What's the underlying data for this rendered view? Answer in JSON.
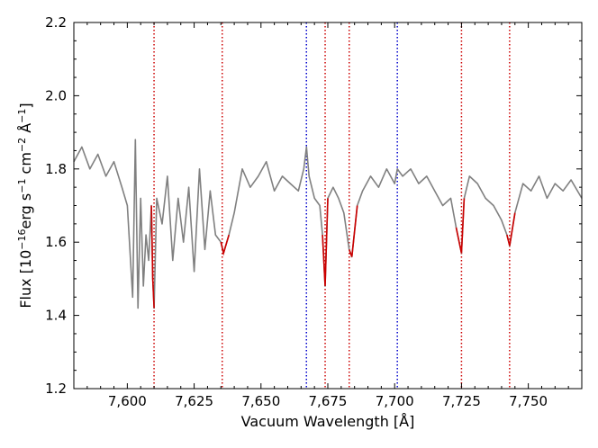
{
  "chart_data": {
    "type": "line",
    "xlabel": "Vacuum Wavelength [Å]",
    "ylabel_parts": [
      "Flux [10",
      "−16",
      "erg s",
      "−1",
      " cm",
      "−2",
      " Å",
      "−1",
      "]"
    ],
    "xlim": [
      7580,
      7770
    ],
    "ylim": [
      1.2,
      2.2
    ],
    "xticks": [
      7600,
      7625,
      7650,
      7675,
      7700,
      7725,
      7750
    ],
    "xtick_labels": [
      "7,600",
      "7,625",
      "7,650",
      "7,675",
      "7,700",
      "7,725",
      "7,750"
    ],
    "yticks": [
      1.2,
      1.4,
      1.6,
      1.8,
      2.0,
      2.2
    ],
    "ytick_labels": [
      "1.2",
      "1.4",
      "1.6",
      "1.8",
      "2.0",
      "2.2"
    ],
    "grid": false,
    "series": [
      {
        "color": "#808080",
        "x": [
          7580,
          7583,
          7586,
          7589,
          7592,
          7595,
          7598,
          7600,
          7602,
          7603,
          7604,
          7605,
          7606,
          7607,
          7608,
          7609,
          7609.5,
          7610,
          7611,
          7613,
          7615,
          7617,
          7619,
          7621,
          7623,
          7625,
          7627,
          7629,
          7631,
          7633,
          7635,
          7636,
          7638,
          7640,
          7643,
          7646,
          7649,
          7652,
          7655,
          7658,
          7661,
          7664,
          7666,
          7667,
          7668,
          7670,
          7672,
          7673,
          7674,
          7675,
          7677,
          7679,
          7681,
          7683,
          7684,
          7686,
          7688,
          7691,
          7694,
          7697,
          7700,
          7701,
          7703,
          7706,
          7709,
          7712,
          7715,
          7718,
          7721,
          7723,
          7725,
          7726,
          7728,
          7731,
          7734,
          7737,
          7740,
          7742,
          7743,
          7745,
          7748,
          7751,
          7754,
          7757,
          7760,
          7763,
          7766,
          7770
        ],
        "y": [
          1.82,
          1.86,
          1.8,
          1.84,
          1.78,
          1.82,
          1.75,
          1.7,
          1.45,
          1.88,
          1.42,
          1.72,
          1.48,
          1.62,
          1.55,
          1.7,
          1.5,
          1.42,
          1.72,
          1.65,
          1.78,
          1.55,
          1.72,
          1.6,
          1.75,
          1.52,
          1.8,
          1.58,
          1.74,
          1.62,
          1.6,
          1.57,
          1.62,
          1.68,
          1.8,
          1.75,
          1.78,
          1.82,
          1.74,
          1.78,
          1.76,
          1.74,
          1.8,
          1.86,
          1.78,
          1.72,
          1.7,
          1.62,
          1.48,
          1.72,
          1.75,
          1.72,
          1.68,
          1.58,
          1.56,
          1.7,
          1.74,
          1.78,
          1.75,
          1.8,
          1.76,
          1.8,
          1.78,
          1.8,
          1.76,
          1.78,
          1.74,
          1.7,
          1.72,
          1.64,
          1.57,
          1.72,
          1.78,
          1.76,
          1.72,
          1.7,
          1.66,
          1.62,
          1.59,
          1.68,
          1.76,
          1.74,
          1.78,
          1.72,
          1.76,
          1.74,
          1.77,
          1.72
        ]
      }
    ],
    "vlines": [
      {
        "x": 7610,
        "color": "#cc0000"
      },
      {
        "x": 7635.5,
        "color": "#cc0000"
      },
      {
        "x": 7667,
        "color": "#0000cc"
      },
      {
        "x": 7674,
        "color": "#cc0000"
      },
      {
        "x": 7683,
        "color": "#cc0000"
      },
      {
        "x": 7701,
        "color": "#0000cc"
      },
      {
        "x": 7725,
        "color": "#cc0000"
      },
      {
        "x": 7743,
        "color": "#cc0000"
      }
    ],
    "highlight_segments": [
      {
        "x": [
          7609,
          7609.5,
          7610
        ],
        "y": [
          1.7,
          1.5,
          1.42
        ],
        "color": "#cc0000"
      },
      {
        "x": [
          7635,
          7636,
          7638
        ],
        "y": [
          1.6,
          1.57,
          1.62
        ],
        "color": "#cc0000"
      },
      {
        "x": [
          7673,
          7674,
          7675
        ],
        "y": [
          1.62,
          1.48,
          1.72
        ],
        "color": "#cc0000"
      },
      {
        "x": [
          7683,
          7684,
          7686
        ],
        "y": [
          1.58,
          1.56,
          1.7
        ],
        "color": "#cc0000"
      },
      {
        "x": [
          7723,
          7725,
          7726
        ],
        "y": [
          1.64,
          1.57,
          1.72
        ],
        "color": "#cc0000"
      },
      {
        "x": [
          7742,
          7743,
          7745
        ],
        "y": [
          1.62,
          1.59,
          1.68
        ],
        "color": "#cc0000"
      }
    ]
  }
}
